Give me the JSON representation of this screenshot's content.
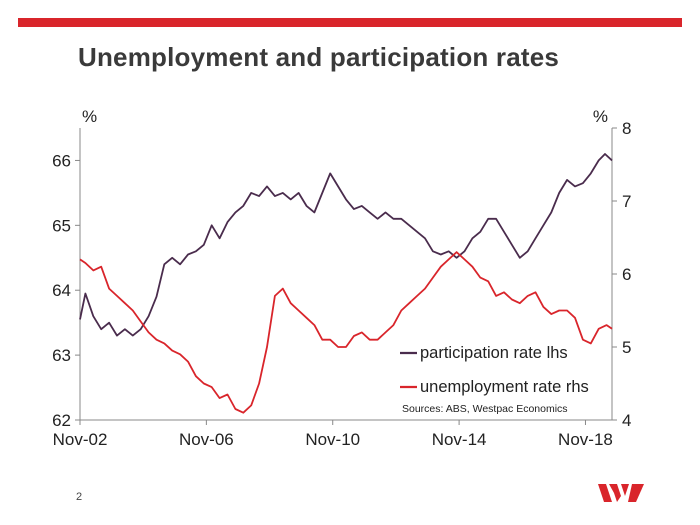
{
  "slide": {
    "title": "Unemployment and participation rates",
    "page_number": "2",
    "brand_color": "#d9252b"
  },
  "chart_data": {
    "type": "line",
    "title": "Unemployment and participation rates",
    "x_start": 2002.83,
    "x_end": 2019.67,
    "x_ticks": [
      {
        "label": "Nov-02",
        "x": 2002.83
      },
      {
        "label": "Nov-06",
        "x": 2006.83
      },
      {
        "label": "Nov-10",
        "x": 2010.83
      },
      {
        "label": "Nov-14",
        "x": 2014.83
      },
      {
        "label": "Nov-18",
        "x": 2018.83
      }
    ],
    "y_left": {
      "unit": "%",
      "min": 62,
      "max": 66.5,
      "ticks": [
        62,
        63,
        64,
        65,
        66
      ]
    },
    "y_right": {
      "unit": "%",
      "min": 4,
      "max": 8,
      "ticks": [
        4,
        5,
        6,
        7,
        8
      ]
    },
    "grid": false,
    "legend_position": "bottom-right",
    "source_note": "Sources: ABS, Westpac Economics",
    "series": [
      {
        "name": "participation rate lhs",
        "axis": "left",
        "color": "#4a2c4d",
        "points": [
          [
            2002.83,
            63.55
          ],
          [
            2003.0,
            63.95
          ],
          [
            2003.25,
            63.6
          ],
          [
            2003.5,
            63.4
          ],
          [
            2003.75,
            63.5
          ],
          [
            2004.0,
            63.3
          ],
          [
            2004.25,
            63.4
          ],
          [
            2004.5,
            63.3
          ],
          [
            2004.75,
            63.4
          ],
          [
            2005.0,
            63.6
          ],
          [
            2005.25,
            63.9
          ],
          [
            2005.5,
            64.4
          ],
          [
            2005.75,
            64.5
          ],
          [
            2006.0,
            64.4
          ],
          [
            2006.25,
            64.55
          ],
          [
            2006.5,
            64.6
          ],
          [
            2006.75,
            64.7
          ],
          [
            2007.0,
            65.0
          ],
          [
            2007.25,
            64.8
          ],
          [
            2007.5,
            65.05
          ],
          [
            2007.75,
            65.2
          ],
          [
            2008.0,
            65.3
          ],
          [
            2008.25,
            65.5
          ],
          [
            2008.5,
            65.45
          ],
          [
            2008.75,
            65.6
          ],
          [
            2009.0,
            65.45
          ],
          [
            2009.25,
            65.5
          ],
          [
            2009.5,
            65.4
          ],
          [
            2009.75,
            65.5
          ],
          [
            2010.0,
            65.3
          ],
          [
            2010.25,
            65.2
          ],
          [
            2010.5,
            65.5
          ],
          [
            2010.75,
            65.8
          ],
          [
            2011.0,
            65.6
          ],
          [
            2011.25,
            65.4
          ],
          [
            2011.5,
            65.25
          ],
          [
            2011.75,
            65.3
          ],
          [
            2012.0,
            65.2
          ],
          [
            2012.25,
            65.1
          ],
          [
            2012.5,
            65.2
          ],
          [
            2012.75,
            65.1
          ],
          [
            2013.0,
            65.1
          ],
          [
            2013.25,
            65.0
          ],
          [
            2013.5,
            64.9
          ],
          [
            2013.75,
            64.8
          ],
          [
            2014.0,
            64.6
          ],
          [
            2014.25,
            64.55
          ],
          [
            2014.5,
            64.6
          ],
          [
            2014.75,
            64.5
          ],
          [
            2015.0,
            64.6
          ],
          [
            2015.25,
            64.8
          ],
          [
            2015.5,
            64.9
          ],
          [
            2015.75,
            65.1
          ],
          [
            2016.0,
            65.1
          ],
          [
            2016.25,
            64.9
          ],
          [
            2016.5,
            64.7
          ],
          [
            2016.75,
            64.5
          ],
          [
            2017.0,
            64.6
          ],
          [
            2017.25,
            64.8
          ],
          [
            2017.5,
            65.0
          ],
          [
            2017.75,
            65.2
          ],
          [
            2018.0,
            65.5
          ],
          [
            2018.25,
            65.7
          ],
          [
            2018.5,
            65.6
          ],
          [
            2018.75,
            65.65
          ],
          [
            2019.0,
            65.8
          ],
          [
            2019.25,
            66.0
          ],
          [
            2019.45,
            66.1
          ],
          [
            2019.67,
            66.0
          ]
        ]
      },
      {
        "name": "unemployment rate rhs",
        "axis": "right",
        "color": "#d9252b",
        "points": [
          [
            2002.83,
            6.2
          ],
          [
            2003.0,
            6.15
          ],
          [
            2003.25,
            6.05
          ],
          [
            2003.5,
            6.1
          ],
          [
            2003.75,
            5.8
          ],
          [
            2004.0,
            5.7
          ],
          [
            2004.25,
            5.6
          ],
          [
            2004.5,
            5.5
          ],
          [
            2004.75,
            5.35
          ],
          [
            2005.0,
            5.2
          ],
          [
            2005.25,
            5.1
          ],
          [
            2005.5,
            5.05
          ],
          [
            2005.75,
            4.95
          ],
          [
            2006.0,
            4.9
          ],
          [
            2006.25,
            4.8
          ],
          [
            2006.5,
            4.6
          ],
          [
            2006.75,
            4.5
          ],
          [
            2007.0,
            4.45
          ],
          [
            2007.25,
            4.3
          ],
          [
            2007.5,
            4.35
          ],
          [
            2007.75,
            4.15
          ],
          [
            2008.0,
            4.1
          ],
          [
            2008.25,
            4.2
          ],
          [
            2008.5,
            4.5
          ],
          [
            2008.75,
            5.0
          ],
          [
            2009.0,
            5.7
          ],
          [
            2009.25,
            5.8
          ],
          [
            2009.5,
            5.6
          ],
          [
            2009.75,
            5.5
          ],
          [
            2010.0,
            5.4
          ],
          [
            2010.25,
            5.3
          ],
          [
            2010.5,
            5.1
          ],
          [
            2010.75,
            5.1
          ],
          [
            2011.0,
            5.0
          ],
          [
            2011.25,
            5.0
          ],
          [
            2011.5,
            5.15
          ],
          [
            2011.75,
            5.2
          ],
          [
            2012.0,
            5.1
          ],
          [
            2012.25,
            5.1
          ],
          [
            2012.5,
            5.2
          ],
          [
            2012.75,
            5.3
          ],
          [
            2013.0,
            5.5
          ],
          [
            2013.25,
            5.6
          ],
          [
            2013.5,
            5.7
          ],
          [
            2013.75,
            5.8
          ],
          [
            2014.0,
            5.95
          ],
          [
            2014.25,
            6.1
          ],
          [
            2014.5,
            6.2
          ],
          [
            2014.75,
            6.3
          ],
          [
            2015.0,
            6.2
          ],
          [
            2015.25,
            6.1
          ],
          [
            2015.5,
            5.95
          ],
          [
            2015.75,
            5.9
          ],
          [
            2016.0,
            5.7
          ],
          [
            2016.25,
            5.75
          ],
          [
            2016.5,
            5.65
          ],
          [
            2016.75,
            5.6
          ],
          [
            2017.0,
            5.7
          ],
          [
            2017.25,
            5.75
          ],
          [
            2017.5,
            5.55
          ],
          [
            2017.75,
            5.45
          ],
          [
            2018.0,
            5.5
          ],
          [
            2018.25,
            5.5
          ],
          [
            2018.5,
            5.4
          ],
          [
            2018.75,
            5.1
          ],
          [
            2019.0,
            5.05
          ],
          [
            2019.25,
            5.25
          ],
          [
            2019.5,
            5.3
          ],
          [
            2019.67,
            5.25
          ]
        ]
      }
    ]
  }
}
